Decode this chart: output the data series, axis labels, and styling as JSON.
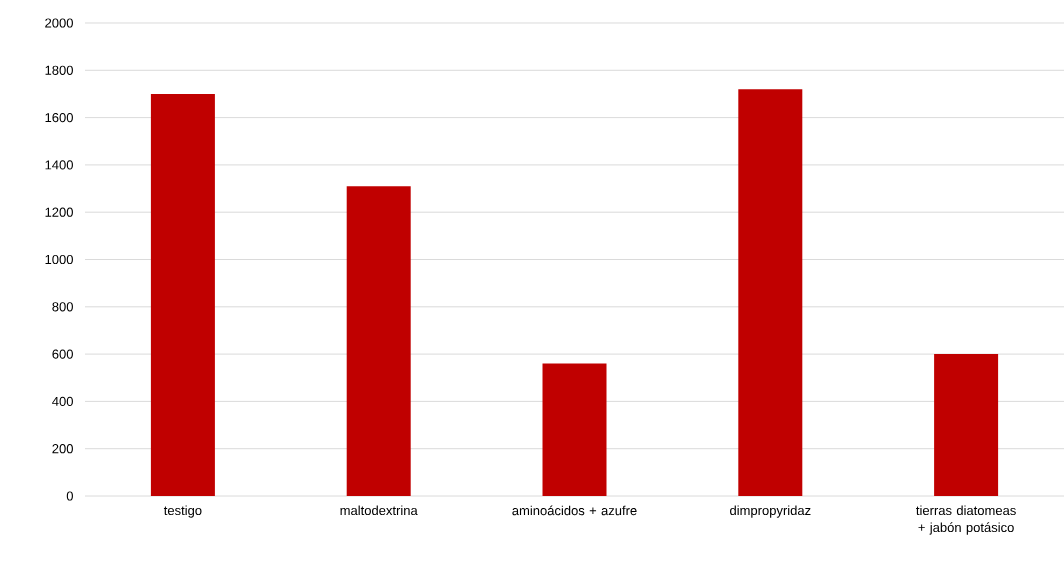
{
  "chart_data": {
    "type": "bar",
    "categories": [
      "testigo",
      "maltodextrina",
      "aminoácidos + azufre",
      "dimpropyridaz",
      "tierras diatomeas + jabón potásico"
    ],
    "values": [
      1700,
      1310,
      560,
      1720,
      600
    ],
    "color": "#c00000",
    "ylim": [
      0,
      2000
    ],
    "yticks": [
      0,
      200,
      400,
      600,
      800,
      1000,
      1200,
      1400,
      1600,
      1800,
      2000
    ],
    "grid": "y"
  }
}
